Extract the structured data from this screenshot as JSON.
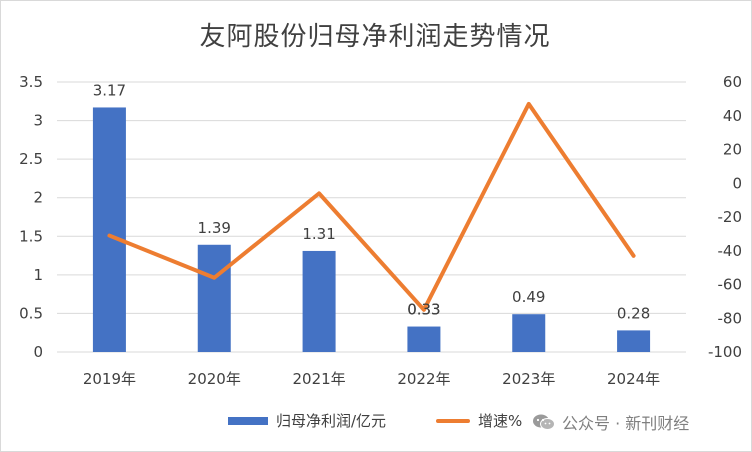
{
  "chart_data": {
    "type": "bar+line",
    "title": "友阿股份归母净利润走势情况",
    "categories": [
      "2019年",
      "2020年",
      "2021年",
      "2022年",
      "2023年",
      "2024年"
    ],
    "series": [
      {
        "name": "归母净利润/亿元",
        "type": "bar",
        "axis": "left",
        "values": [
          3.17,
          1.39,
          1.31,
          0.33,
          0.49,
          0.28
        ],
        "labels": [
          "3.17",
          "1.39",
          "1.31",
          "0.33",
          "0.49",
          "0.28"
        ]
      },
      {
        "name": "增速%",
        "type": "line",
        "axis": "right",
        "values": [
          -31,
          -56,
          -6,
          -75,
          47,
          -43
        ]
      }
    ],
    "y_left": {
      "ylim": [
        0,
        3.5
      ],
      "ticks": [
        "0",
        "0.5",
        "1",
        "1.5",
        "2",
        "2.5",
        "3",
        "3.5"
      ]
    },
    "y_right": {
      "ylim": [
        -100,
        60
      ],
      "ticks": [
        "-100",
        "-80",
        "-60",
        "-40",
        "-20",
        "0",
        "20",
        "40",
        "60"
      ]
    },
    "grid": true,
    "legend_position": "bottom",
    "colors": {
      "bar": "#4472C4",
      "line": "#ED7D31"
    }
  },
  "watermark": {
    "text": "公众号 · 新刊财经",
    "icon": "wechat-icon"
  }
}
